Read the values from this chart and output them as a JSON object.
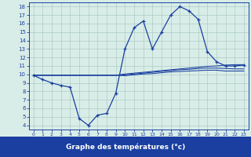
{
  "xlabel": "Graphe des températures (°c)",
  "hours": [
    0,
    1,
    2,
    3,
    4,
    5,
    6,
    7,
    8,
    9,
    10,
    11,
    12,
    13,
    14,
    15,
    16,
    17,
    18,
    19,
    20,
    21,
    22,
    23
  ],
  "temp_main": [
    9.9,
    9.4,
    9.0,
    8.7,
    8.5,
    4.8,
    4.0,
    5.2,
    5.4,
    7.8,
    13.0,
    15.5,
    16.3,
    13.0,
    15.0,
    17.0,
    18.0,
    17.5,
    16.5,
    12.7,
    11.5,
    11.0,
    11.0,
    11.1
  ],
  "temp_trend1": [
    9.9,
    9.9,
    9.9,
    9.9,
    9.9,
    9.9,
    9.9,
    9.9,
    9.9,
    9.9,
    10.05,
    10.15,
    10.25,
    10.35,
    10.45,
    10.55,
    10.65,
    10.75,
    10.85,
    10.95,
    11.0,
    11.1,
    11.15,
    11.15
  ],
  "temp_trend2": [
    9.9,
    9.9,
    9.9,
    9.9,
    9.9,
    9.9,
    9.9,
    9.9,
    9.9,
    9.9,
    9.95,
    10.05,
    10.15,
    10.25,
    10.35,
    10.45,
    10.55,
    10.6,
    10.7,
    10.75,
    10.75,
    10.7,
    10.65,
    10.65
  ],
  "temp_trend3": [
    9.9,
    9.9,
    9.9,
    9.9,
    9.9,
    9.9,
    9.9,
    9.9,
    9.9,
    9.9,
    9.85,
    9.95,
    10.05,
    10.1,
    10.2,
    10.3,
    10.35,
    10.4,
    10.45,
    10.5,
    10.5,
    10.4,
    10.4,
    10.4
  ],
  "bg_color": "#d9ede8",
  "line_color": "#1a3fa0",
  "grid_color": "#aaccc4",
  "xlabel_bg": "#1a3fa0",
  "ylim": [
    3.5,
    18.5
  ],
  "yticks": [
    4,
    5,
    6,
    7,
    8,
    9,
    10,
    11,
    12,
    13,
    14,
    15,
    16,
    17,
    18
  ],
  "xticks": [
    0,
    1,
    2,
    3,
    4,
    5,
    6,
    7,
    8,
    9,
    10,
    11,
    12,
    13,
    14,
    15,
    16,
    17,
    18,
    19,
    20,
    21,
    22,
    23
  ]
}
